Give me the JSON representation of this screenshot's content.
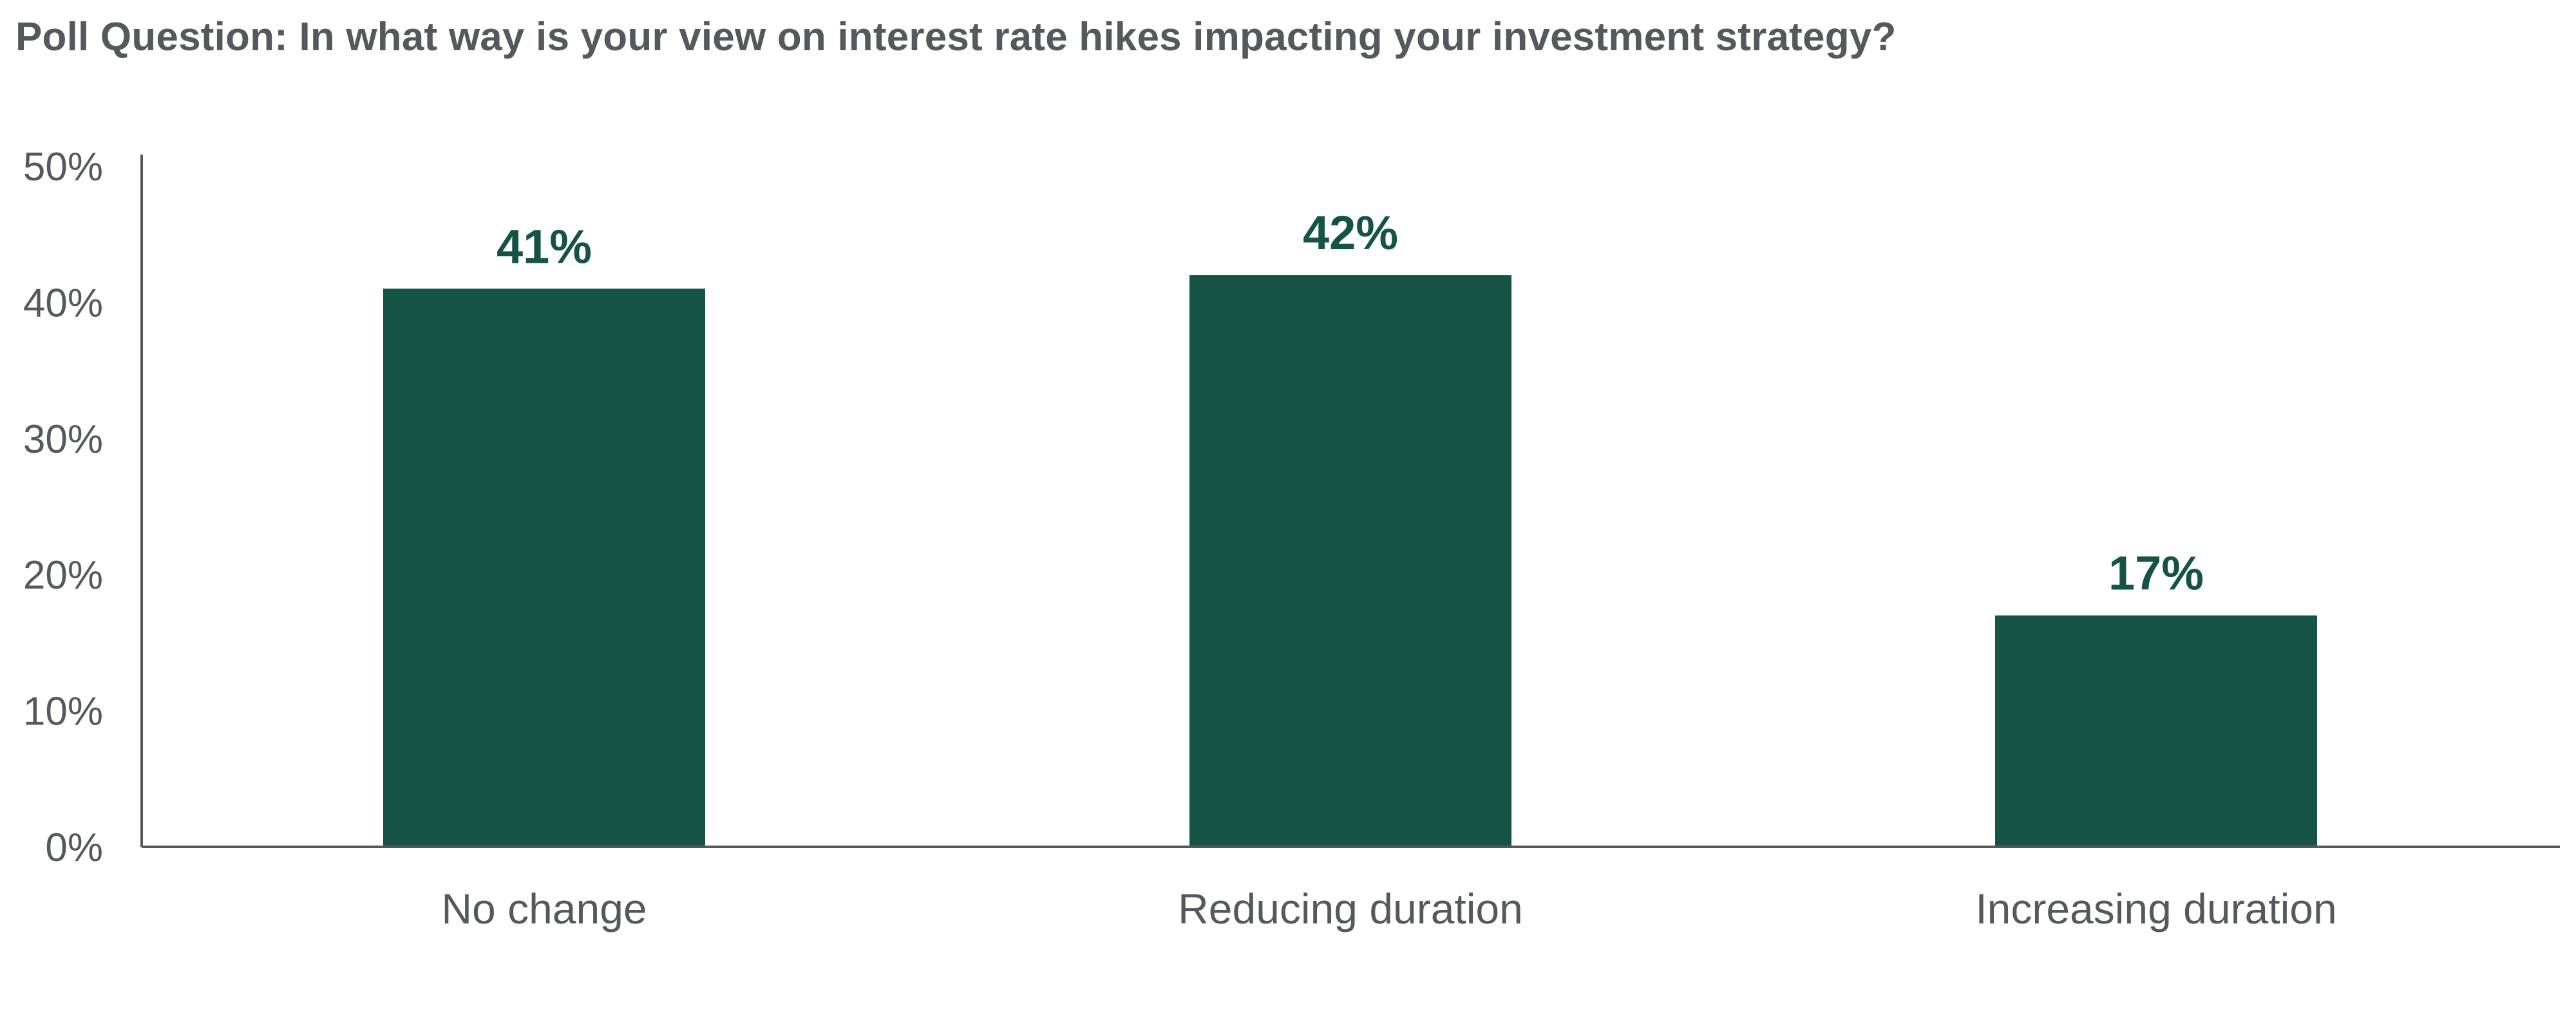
{
  "chart_data": {
    "type": "bar",
    "title": "Poll Question: In what way is your view on interest rate hikes impacting your investment strategy?",
    "xlabel": "",
    "ylabel": "",
    "categories": [
      "No change",
      "Reducing duration",
      "Increasing duration"
    ],
    "values": [
      41,
      42,
      17
    ],
    "data_labels": [
      "41%",
      "42%",
      "17%"
    ],
    "ylim": [
      0,
      50
    ],
    "yticks": [
      0,
      10,
      20,
      30,
      40,
      50
    ],
    "ytick_labels": [
      "0%",
      "10%",
      "20%",
      "30%",
      "40%",
      "50%"
    ],
    "grid": false,
    "legend": "none",
    "colors": {
      "bar": "#155445",
      "data_label": "#155445",
      "axis": "#55595e",
      "text": "#55595e"
    }
  }
}
